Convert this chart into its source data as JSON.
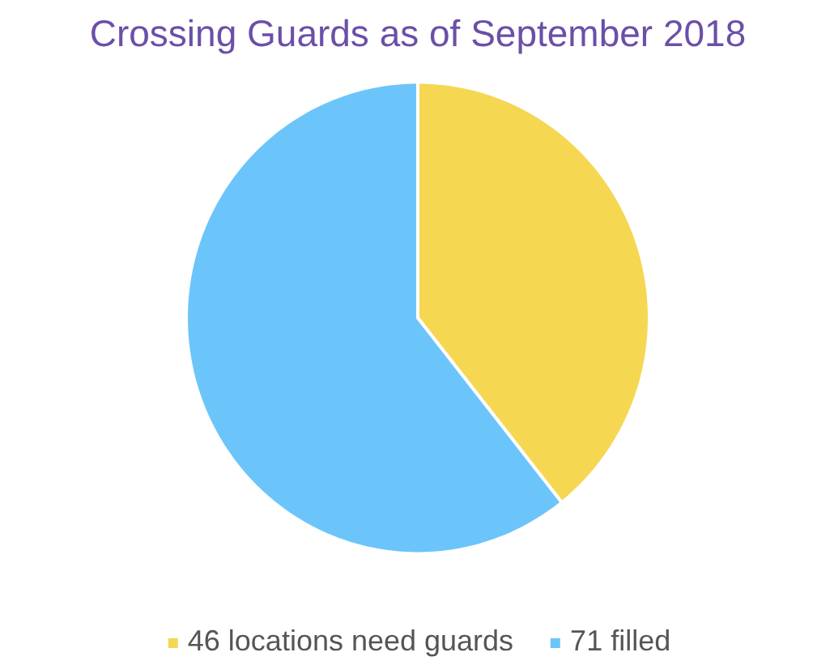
{
  "chart_data": {
    "type": "pie",
    "title": "Crossing Guards as of September 2018",
    "categories": [
      "46 locations need guards",
      "71 filled"
    ],
    "values": [
      46,
      71
    ],
    "colors": [
      "#f5d752",
      "#6cc5fa"
    ],
    "legend": "bottom"
  }
}
